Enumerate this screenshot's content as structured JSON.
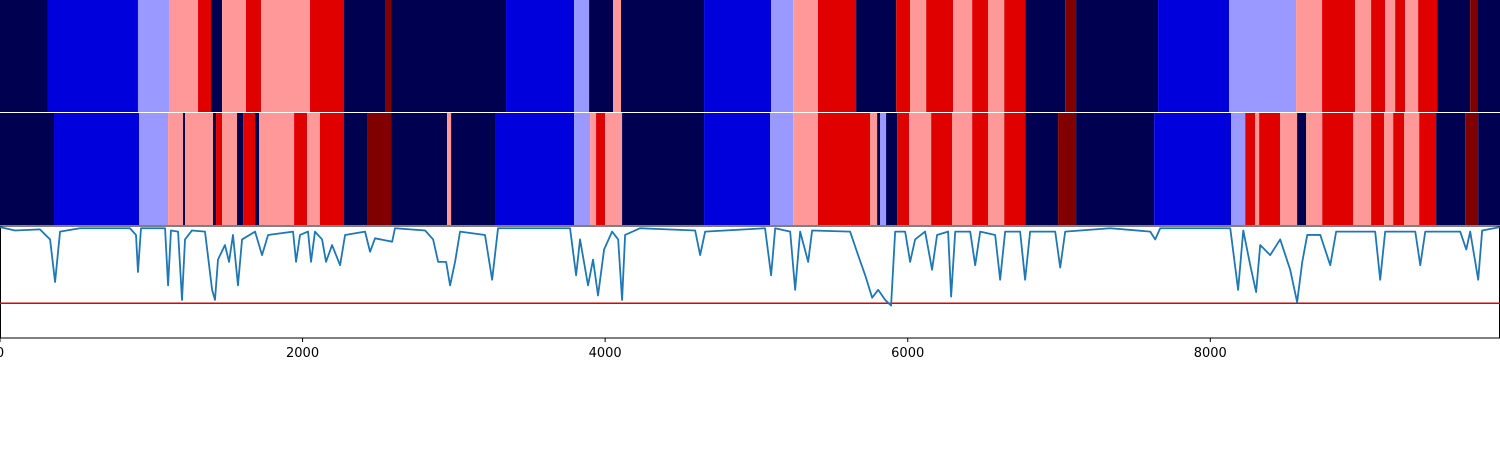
{
  "chart_data": {
    "type": "segments",
    "xlim": [
      0,
      9915
    ],
    "xticks": [
      0,
      2000,
      4000,
      6000,
      8000
    ],
    "ylim": [
      0,
      1
    ],
    "rows": [
      {
        "bounds": [
          0,
          317,
          912,
          1117,
          1309,
          1395,
          1468,
          1626,
          1726,
          2049,
          2274,
          2545,
          2585,
          3345,
          3795,
          3894,
          4053,
          4105,
          4654,
          5097,
          5243,
          5407,
          5659,
          5924,
          6016,
          6122,
          6300,
          6426,
          6532,
          6638,
          6777,
          7041,
          7113,
          7655,
          8124,
          8567,
          8739,
          8957,
          9063,
          9156,
          9222,
          9288,
          9374,
          9500,
          9718,
          9764,
          9915
        ],
        "colors": [
          "#000050",
          "#0000dd",
          "#9999ff",
          "#ff9999",
          "#e00000",
          "#000050",
          "#ff9999",
          "#e00000",
          "#ff9999",
          "#e00000",
          "#000050",
          "#800000",
          "#000050",
          "#0000dd",
          "#9999ff",
          "#000050",
          "#ff9999",
          "#000050",
          "#0000dd",
          "#9999ff",
          "#ff9999",
          "#e00000",
          "#000050",
          "#e00000",
          "#ff9999",
          "#e00000",
          "#ff9999",
          "#e00000",
          "#ff9999",
          "#e00000",
          "#000050",
          "#800000",
          "#000050",
          "#0000dd",
          "#9999ff",
          "#ff9999",
          "#e00000",
          "#ff9999",
          "#e00000",
          "#ff9999",
          "#e00000",
          "#ff9999",
          "#e00000",
          "#000050",
          "#800000",
          "#000050"
        ]
      },
      {
        "bounds": [
          0,
          357,
          919,
          1111,
          1210,
          1223,
          1408,
          1428,
          1468,
          1567,
          1607,
          1686,
          1712,
          1944,
          2030,
          2115,
          2274,
          2426,
          2585,
          2955,
          2982,
          3272,
          3795,
          3901,
          3940,
          4000,
          4112,
          4654,
          5090,
          5243,
          5407,
          5752,
          5798,
          5818,
          5857,
          5930,
          6009,
          6155,
          6294,
          6426,
          6532,
          6638,
          6777,
          6994,
          7113,
          7629,
          8138,
          8231,
          8297,
          8323,
          8462,
          8574,
          8634,
          8740,
          8945,
          9063,
          9149,
          9209,
          9282,
          9381,
          9493,
          9685,
          9771,
          9915
        ],
        "colors": [
          "#000050",
          "#0000dd",
          "#9999ff",
          "#ff9999",
          "#000050",
          "#ff9999",
          "#000050",
          "#e00000",
          "#ff9999",
          "#000050",
          "#e00000",
          "#000050",
          "#ff9999",
          "#e00000",
          "#ff9999",
          "#e00000",
          "#000050",
          "#800000",
          "#000050",
          "#ff9999",
          "#000050",
          "#0000dd",
          "#9999ff",
          "#ff9999",
          "#e00000",
          "#ff9999",
          "#000050",
          "#0000dd",
          "#9999ff",
          "#ff9999",
          "#e00000",
          "#ff9999",
          "#000050",
          "#9999ff",
          "#000050",
          "#e00000",
          "#ff9999",
          "#e00000",
          "#ff9999",
          "#e00000",
          "#ff9999",
          "#e00000",
          "#000050",
          "#800000",
          "#000050",
          "#0000dd",
          "#9999ff",
          "#e00000",
          "#ff9999",
          "#e00000",
          "#ff9999",
          "#000050",
          "#ff9999",
          "#e00000",
          "#ff9999",
          "#e00000",
          "#ff9999",
          "#e00000",
          "#ff9999",
          "#e00000",
          "#000050",
          "#800000",
          "#000050"
        ]
      }
    ],
    "line": {
      "color": "#1f77b4",
      "x": [
        0,
        99,
        264,
        331,
        364,
        397,
        529,
        859,
        899,
        912,
        932,
        1091,
        1111,
        1130,
        1177,
        1203,
        1223,
        1269,
        1355,
        1402,
        1421,
        1441,
        1487,
        1514,
        1540,
        1573,
        1600,
        1686,
        1732,
        1772,
        1937,
        1957,
        1983,
        2036,
        2056,
        2082,
        2129,
        2155,
        2195,
        2248,
        2281,
        2413,
        2446,
        2479,
        2592,
        2611,
        2810,
        2863,
        2896,
        2949,
        2975,
        3008,
        3041,
        3206,
        3253,
        3292,
        3768,
        3808,
        3834,
        3887,
        3920,
        3953,
        3993,
        4046,
        4086,
        4112,
        4132,
        4231,
        4595,
        4628,
        4661,
        5057,
        5097,
        5124,
        5223,
        5256,
        5289,
        5342,
        5368,
        5619,
        5672,
        5719,
        5765,
        5805,
        5851,
        5890,
        5917,
        5983,
        6016,
        6049,
        6115,
        6161,
        6194,
        6267,
        6287,
        6314,
        6413,
        6446,
        6479,
        6578,
        6611,
        6644,
        6743,
        6776,
        6809,
        6975,
        7008,
        7041,
        7338,
        7603,
        7636,
        7669,
        8132,
        8184,
        8218,
        8264,
        8303,
        8330,
        8396,
        8462,
        8528,
        8574,
        8608,
        8641,
        8727,
        8793,
        8832,
        9090,
        9123,
        9156,
        9355,
        9388,
        9421,
        9652,
        9692,
        9718,
        9771,
        9797,
        9915
      ],
      "values": [
        0.99,
        0.96,
        0.97,
        0.88,
        0.5,
        0.95,
        0.98,
        0.98,
        0.92,
        0.59,
        0.98,
        0.98,
        0.47,
        0.96,
        0.95,
        0.34,
        0.88,
        0.96,
        0.95,
        0.43,
        0.34,
        0.7,
        0.83,
        0.68,
        0.92,
        0.47,
        0.88,
        0.95,
        0.74,
        0.92,
        0.95,
        0.68,
        0.92,
        0.95,
        0.68,
        0.95,
        0.88,
        0.68,
        0.83,
        0.65,
        0.92,
        0.95,
        0.77,
        0.89,
        0.86,
        0.98,
        0.96,
        0.88,
        0.68,
        0.68,
        0.47,
        0.68,
        0.95,
        0.92,
        0.52,
        0.98,
        0.98,
        0.56,
        0.88,
        0.47,
        0.7,
        0.38,
        0.79,
        0.95,
        0.88,
        0.34,
        0.92,
        0.98,
        0.96,
        0.74,
        0.95,
        0.98,
        0.56,
        0.98,
        0.95,
        0.43,
        0.95,
        0.68,
        0.96,
        0.95,
        0.74,
        0.56,
        0.36,
        0.43,
        0.34,
        0.29,
        0.95,
        0.95,
        0.68,
        0.88,
        0.95,
        0.61,
        0.92,
        0.95,
        0.37,
        0.95,
        0.95,
        0.65,
        0.95,
        0.92,
        0.52,
        0.95,
        0.95,
        0.52,
        0.95,
        0.95,
        0.63,
        0.95,
        0.98,
        0.95,
        0.88,
        0.98,
        0.98,
        0.43,
        0.96,
        0.65,
        0.41,
        0.83,
        0.74,
        0.88,
        0.61,
        0.32,
        0.68,
        0.92,
        0.92,
        0.65,
        0.95,
        0.95,
        0.52,
        0.95,
        0.95,
        0.65,
        0.95,
        0.95,
        0.79,
        0.95,
        0.52,
        0.96,
        0.99
      ]
    },
    "threshold": {
      "value": 0.31,
      "color": "#e00000"
    }
  }
}
